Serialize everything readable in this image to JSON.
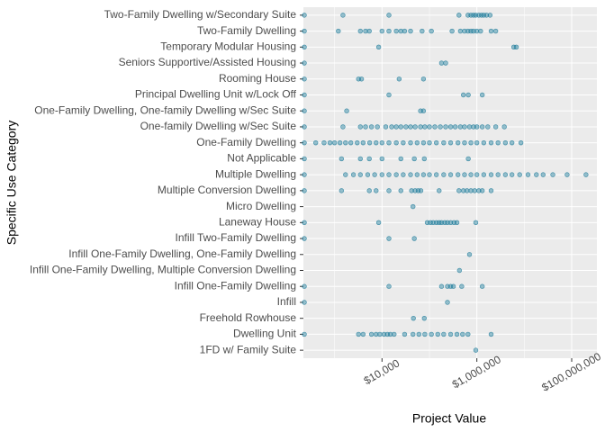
{
  "chart_data": {
    "type": "strip",
    "x_label": "Project Value",
    "y_label": "Specific Use Category",
    "log_x": true,
    "grid": true,
    "color": "#1b7a9a",
    "xlim": [
      220,
      340000000
    ],
    "xticks": [
      {
        "value": 10000,
        "label": "$10,000"
      },
      {
        "value": 1000000,
        "label": "$1,000,000"
      },
      {
        "value": 100000000,
        "label": "$100,000,000"
      }
    ],
    "minor_xticks": [
      1000,
      100000,
      10000000
    ],
    "categories": [
      "Two-Family Dwelling w/Secondary Suite",
      "Two-Family Dwelling",
      "Temporary Modular Housing",
      "Seniors Supportive/Assisted Housing",
      "Rooming House",
      "Principal Dwelling Unit w/Lock Off",
      "One-Family Dwelling, One-family Dwelling w/Sec Suite",
      "One-family Dwelling w/Sec Suite",
      "One-Family Dwelling",
      "Not Applicable",
      "Multiple Dwelling",
      "Multiple Conversion Dwelling",
      "Micro Dwelling",
      "Laneway House",
      "Infill Two-Family Dwelling",
      "Infill One-Family Dwelling, One-Family Dwelling",
      "Infill One-Family Dwelling, Multiple Conversion Dwelling",
      "Infill One-Family Dwelling",
      "Infill",
      "Freehold Rowhouse",
      "Dwelling Unit",
      "1FD w/ Family Suite"
    ],
    "values": [
      [
        230,
        1500,
        14000,
        420000,
        650000,
        750000,
        850000,
        950000,
        1100000,
        1250000,
        1400000,
        1600000,
        1900000
      ],
      [
        230,
        1200,
        3500,
        4500,
        5400,
        10000,
        14000,
        20000,
        25000,
        30000,
        40000,
        70000,
        110000,
        300000,
        450000,
        550000,
        650000,
        750000,
        850000,
        1000000,
        1200000,
        2000000,
        2500000
      ],
      [
        230,
        8500,
        6000000,
        6800000
      ],
      [
        230,
        180000,
        220000
      ],
      [
        230,
        3200,
        3700,
        23000,
        75000
      ],
      [
        230,
        14000,
        520000,
        660000,
        1300000
      ],
      [
        230,
        1800,
        65000,
        75000
      ],
      [
        230,
        1500,
        3500,
        4500,
        6000,
        8000,
        12000,
        16000,
        20000,
        25000,
        32000,
        40000,
        50000,
        65000,
        80000,
        100000,
        130000,
        170000,
        220000,
        280000,
        350000,
        450000,
        550000,
        700000,
        850000,
        1000000,
        1300000,
        1700000,
        2500000,
        3800000
      ],
      [
        230,
        400,
        600,
        800,
        1000,
        1300,
        1700,
        2200,
        3000,
        4000,
        5500,
        7500,
        10000,
        14000,
        20000,
        28000,
        40000,
        55000,
        75000,
        100000,
        140000,
        200000,
        280000,
        400000,
        550000,
        750000,
        1000000,
        1400000,
        2000000,
        2800000,
        4000000,
        5500000,
        8500000
      ],
      [
        230,
        1400,
        3500,
        5400,
        10000,
        25000,
        48000,
        78000,
        660000
      ],
      [
        230,
        1700,
        2500,
        3500,
        5000,
        7000,
        10000,
        14000,
        20000,
        28000,
        40000,
        55000,
        75000,
        100000,
        140000,
        200000,
        280000,
        400000,
        550000,
        750000,
        1000000,
        1400000,
        2000000,
        2800000,
        4000000,
        5500000,
        8000000,
        12000000,
        18000000,
        25000000,
        40000000,
        80000000,
        200000000
      ],
      [
        230,
        1400,
        5400,
        7500,
        14000,
        25000,
        42000,
        50000,
        58000,
        66000,
        160000,
        420000,
        520000,
        620000,
        750000,
        900000,
        1100000,
        1300000,
        2000000
      ],
      [
        45000
      ],
      [
        230,
        8500,
        90000,
        105000,
        120000,
        140000,
        160000,
        180000,
        210000,
        240000,
        280000,
        330000,
        380000,
        950000
      ],
      [
        230,
        14000,
        48000
      ],
      [
        700000
      ],
      [
        430000
      ],
      [
        230,
        14000,
        180000,
        240000,
        280000,
        320000,
        480000,
        1300000
      ],
      [
        230,
        240000
      ],
      [
        46000,
        78000
      ],
      [
        230,
        3200,
        4000,
        6000,
        7500,
        9000,
        11000,
        13000,
        15000,
        18000,
        30000,
        45000,
        60000,
        80000,
        110000,
        150000,
        200000,
        280000,
        380000,
        500000,
        650000,
        2000000
      ],
      [
        950000
      ]
    ]
  }
}
